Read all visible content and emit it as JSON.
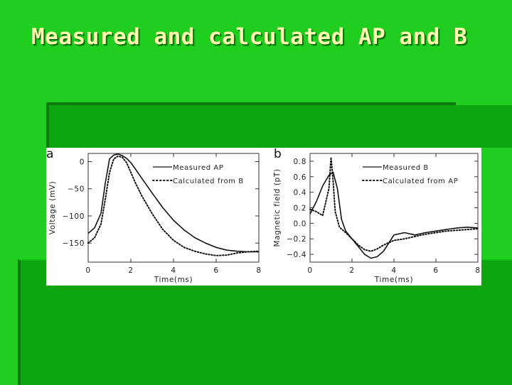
{
  "slide": {
    "title": "Measured and calculated AP and B",
    "colors": {
      "background": "#1fce1f",
      "panel": "#0ea60e",
      "title": "#fffbb0"
    }
  },
  "chart_data": [
    {
      "type": "line",
      "panel_label": "a",
      "xlabel": "Time(ms)",
      "ylabel": "Voltage (mV)",
      "xlim": [
        0,
        8
      ],
      "ylim": [
        -185,
        15
      ],
      "x_ticks": [
        0,
        2,
        4,
        6,
        8
      ],
      "y_ticks": [
        0,
        -50,
        -100,
        -150
      ],
      "y_tick_labels": [
        "0",
        "−50",
        "−100",
        "−150"
      ],
      "grid": false,
      "legend": "top-right",
      "series": [
        {
          "name": "Measured AP",
          "style": "solid",
          "x": [
            0,
            0.3,
            0.6,
            0.8,
            1.0,
            1.2,
            1.4,
            1.6,
            1.8,
            2.0,
            2.2,
            2.5,
            3.0,
            3.5,
            4.0,
            4.5,
            5.0,
            5.5,
            6.0,
            6.5,
            7.0,
            7.5,
            8.0
          ],
          "y": [
            -132,
            -122,
            -95,
            -40,
            5,
            12,
            14,
            11,
            6,
            -2,
            -13,
            -30,
            -58,
            -85,
            -108,
            -126,
            -140,
            -150,
            -158,
            -163,
            -165,
            -166,
            -166
          ]
        },
        {
          "name": "Calculated from B",
          "style": "dotted",
          "x": [
            0,
            0.3,
            0.6,
            0.8,
            1.0,
            1.2,
            1.4,
            1.6,
            1.8,
            2.0,
            2.2,
            2.5,
            3.0,
            3.5,
            4.0,
            4.5,
            5.0,
            5.5,
            6.0,
            6.5,
            7.0,
            7.5,
            8.0
          ],
          "y": [
            -150,
            -140,
            -115,
            -70,
            -20,
            5,
            10,
            8,
            -2,
            -20,
            -38,
            -62,
            -96,
            -125,
            -145,
            -158,
            -165,
            -170,
            -173,
            -172,
            -168,
            -166,
            -165
          ]
        }
      ]
    },
    {
      "type": "line",
      "panel_label": "b",
      "xlabel": "Time(ms)",
      "ylabel": "Magnetic field (pT)",
      "xlim": [
        0,
        8
      ],
      "ylim": [
        -0.5,
        0.9
      ],
      "x_ticks": [
        0,
        2,
        4,
        6,
        8
      ],
      "y_ticks": [
        0.8,
        0.6,
        0.4,
        0.2,
        0.0,
        -0.2,
        -0.4
      ],
      "y_tick_labels": [
        "0.8",
        "0.6",
        "0.4",
        "0.2",
        "0.0",
        "−0.2",
        "−0.4"
      ],
      "grid": false,
      "legend": "top-right",
      "series": [
        {
          "name": "Measured B",
          "style": "solid",
          "x": [
            0,
            0.3,
            0.6,
            0.9,
            1.1,
            1.3,
            1.5,
            1.7,
            2.0,
            2.3,
            2.6,
            2.9,
            3.2,
            3.5,
            4.0,
            4.5,
            5.0,
            5.5,
            6.0,
            6.5,
            7.0,
            7.5,
            8.0
          ],
          "y": [
            0.12,
            0.28,
            0.48,
            0.62,
            0.66,
            0.45,
            0.05,
            -0.1,
            -0.2,
            -0.3,
            -0.4,
            -0.45,
            -0.43,
            -0.36,
            -0.15,
            -0.12,
            -0.15,
            -0.12,
            -0.1,
            -0.08,
            -0.06,
            -0.05,
            -0.06
          ]
        },
        {
          "name": "Calculated from AP",
          "style": "dotted",
          "x": [
            0,
            0.3,
            0.6,
            0.9,
            1.0,
            1.1,
            1.2,
            1.4,
            1.7,
            2.0,
            2.3,
            2.6,
            2.9,
            3.2,
            3.5,
            4.0,
            4.5,
            5.0,
            5.5,
            6.0,
            6.5,
            7.0,
            7.5,
            8.0
          ],
          "y": [
            0.18,
            0.15,
            0.1,
            0.45,
            0.85,
            0.55,
            0.15,
            -0.05,
            -0.12,
            -0.2,
            -0.28,
            -0.34,
            -0.36,
            -0.33,
            -0.28,
            -0.22,
            -0.2,
            -0.17,
            -0.14,
            -0.12,
            -0.1,
            -0.09,
            -0.08,
            -0.07
          ]
        }
      ]
    }
  ]
}
